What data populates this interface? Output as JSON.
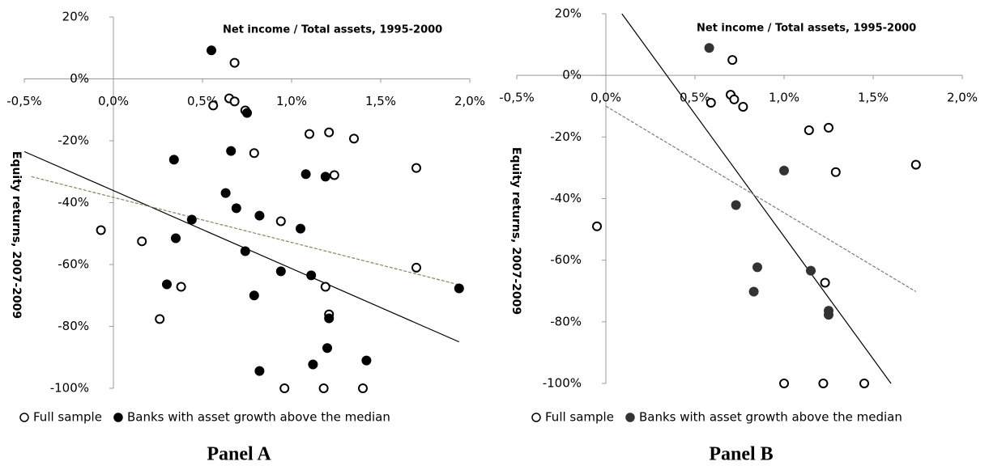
{
  "chart_data": [
    {
      "type": "scatter",
      "title": "Net income / Total assets, 1995-2000",
      "caption": "Panel A",
      "y_label": "Equity returns, 2007-2009",
      "xlim": [
        -0.5,
        2.0
      ],
      "ylim": [
        -100,
        20
      ],
      "xticks": [
        {
          "value": -0.5,
          "label": "-0,5%"
        },
        {
          "value": 0,
          "label": "0,0%"
        },
        {
          "value": 0.5,
          "label": "0,5%"
        },
        {
          "value": 1.0,
          "label": "1,0%"
        },
        {
          "value": 1.5,
          "label": "1,5%"
        },
        {
          "value": 2.0,
          "label": "2,0%"
        }
      ],
      "yticks": [
        {
          "value": 20,
          "label": "20%"
        },
        {
          "value": 0,
          "label": "0%"
        },
        {
          "value": -20,
          "label": "-20%"
        },
        {
          "value": -40,
          "label": "-40%"
        },
        {
          "value": -60,
          "label": "-60%"
        },
        {
          "value": -80,
          "label": "-80%"
        },
        {
          "value": -100,
          "label": "-100%"
        }
      ],
      "series": [
        {
          "name": "Full sample",
          "color": "#000000",
          "marker": "hollow",
          "x": [
            0.68,
            0.56,
            0.65,
            0.68,
            0.74,
            1.1,
            1.21,
            1.35,
            0.79,
            1.24,
            1.7,
            -0.07,
            0.16,
            0.94,
            1.7,
            0.38,
            1.19,
            1.21,
            0.26,
            0.96,
            1.18,
            1.4
          ],
          "values": [
            5.2,
            -8.6,
            -6.3,
            -7.3,
            -10.2,
            -17.8,
            -17.3,
            -19.3,
            -24,
            -31.1,
            -28.8,
            -48.9,
            -52.5,
            -46,
            -61,
            -67.2,
            -67.2,
            -76.1,
            -77.6,
            -100,
            -100,
            -100
          ]
        },
        {
          "name": "Banks with asset growth above the median",
          "color": "#000000",
          "marker": "filled",
          "x": [
            0.55,
            0.75,
            0.66,
            0.34,
            1.08,
            1.19,
            0.63,
            0.69,
            0.82,
            0.44,
            1.05,
            0.35,
            0.74,
            0.94,
            1.11,
            0.3,
            1.94,
            0.79,
            1.21,
            1.2,
            0.82,
            1.12,
            1.42
          ],
          "values": [
            9.2,
            -11,
            -23.3,
            -26.1,
            -30.8,
            -31.6,
            -36.9,
            -41.8,
            -44.2,
            -45.5,
            -48.4,
            -51.5,
            -55.7,
            -62.2,
            -63.5,
            -66.4,
            -67.7,
            -70,
            -77.4,
            -87,
            -94.4,
            -92.3,
            -91
          ]
        }
      ],
      "trendlines": [
        {
          "color": "#000000",
          "dashed": false,
          "x": [
            -0.5,
            1.94
          ],
          "values": [
            -23.5,
            -85
          ]
        },
        {
          "color": "#7a8a5a",
          "dashed": true,
          "x": [
            -0.46,
            1.93
          ],
          "values": [
            -31.6,
            -66.4
          ]
        }
      ]
    },
    {
      "type": "scatter",
      "title": "Net income / Total assets, 1995-2000",
      "caption": "Panel B",
      "y_label": "Equity returns, 2007-2009",
      "xlim": [
        -0.5,
        2.0
      ],
      "ylim": [
        -100,
        20
      ],
      "xticks": [
        {
          "value": -0.5,
          "label": "-0,5%"
        },
        {
          "value": 0,
          "label": "0,0%"
        },
        {
          "value": 0.5,
          "label": "0,5%"
        },
        {
          "value": 1.0,
          "label": "1,0%"
        },
        {
          "value": 1.5,
          "label": "1,5%"
        },
        {
          "value": 2.0,
          "label": "2,0%"
        }
      ],
      "yticks": [
        {
          "value": 20,
          "label": "20%"
        },
        {
          "value": 0,
          "label": "0%"
        },
        {
          "value": -20,
          "label": "-20%"
        },
        {
          "value": -40,
          "label": "-40%"
        },
        {
          "value": -60,
          "label": "-60%"
        },
        {
          "value": -80,
          "label": "-80%"
        },
        {
          "value": -100,
          "label": "-100%"
        }
      ],
      "series": [
        {
          "name": "Full sample",
          "color": "#000000",
          "marker": "hollow",
          "x": [
            0.71,
            0.59,
            0.7,
            0.72,
            0.77,
            1.14,
            1.25,
            1.29,
            1.74,
            -0.05,
            1.23,
            1.0,
            1.22,
            1.45
          ],
          "values": [
            5,
            -8.9,
            -6.3,
            -7.8,
            -10.2,
            -17.8,
            -17,
            -31.4,
            -29,
            -49,
            -67.3,
            -100,
            -100,
            -100
          ]
        },
        {
          "name": "Banks with asset growth above the median",
          "color": "#333333",
          "marker": "filled",
          "x": [
            0.58,
            1.0,
            0.73,
            0.85,
            1.15,
            0.83,
            1.25,
            1.25
          ],
          "values": [
            8.9,
            -30.9,
            -42.1,
            -62.3,
            -63.4,
            -70.2,
            -76.4,
            -77.7
          ]
        }
      ],
      "trendlines": [
        {
          "color": "#000000",
          "dashed": false,
          "x": [
            0.09,
            1.6
          ],
          "values": [
            20,
            -100
          ]
        },
        {
          "color": "#7a7a7a",
          "dashed": true,
          "x": [
            0,
            1.74
          ],
          "values": [
            -10,
            -70.2
          ]
        }
      ]
    }
  ]
}
